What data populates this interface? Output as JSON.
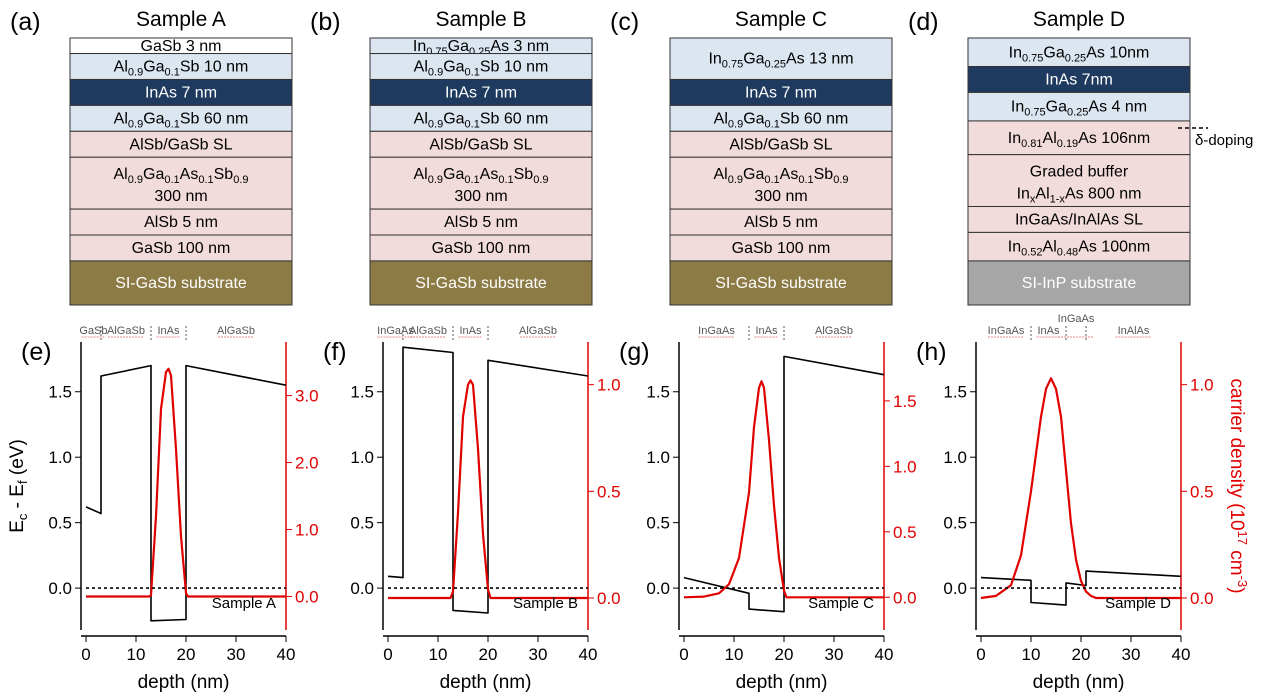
{
  "figure": {
    "panels": [
      {
        "label": "(a)",
        "title": "Sample A",
        "layers": [
          {
            "parts": [
              [
                "GaSb 3 nm"
              ]
            ],
            "fill": "#ffffff",
            "h": 0.6
          },
          {
            "parts": [
              [
                "Al"
              ],
              [
                "0.9",
                "sub"
              ],
              [
                "Ga"
              ],
              [
                "0.1",
                "sub"
              ],
              [
                "Sb 10 nm"
              ]
            ],
            "fill": "#dce6f1",
            "h": 1
          },
          {
            "parts": [
              [
                "InAs 7 nm"
              ]
            ],
            "fill": "#1f3a5f",
            "color": "#ffffff",
            "h": 1
          },
          {
            "parts": [
              [
                "Al"
              ],
              [
                "0.9",
                "sub"
              ],
              [
                "Ga"
              ],
              [
                "0.1",
                "sub"
              ],
              [
                "Sb 60 nm"
              ]
            ],
            "fill": "#dce6f1",
            "h": 1
          },
          {
            "parts": [
              [
                "AlSb/GaSb SL"
              ]
            ],
            "fill": "#f2dcdb",
            "h": 1
          },
          {
            "parts": [
              [
                "Al"
              ],
              [
                "0.9",
                "sub"
              ],
              [
                "Ga"
              ],
              [
                "0.1",
                "sub"
              ],
              [
                "As"
              ],
              [
                "0.1",
                "sub"
              ],
              [
                "Sb"
              ],
              [
                "0.9",
                "sub"
              ]
            ],
            "line2": "300 nm",
            "fill": "#f2dcdb",
            "h": 2
          },
          {
            "parts": [
              [
                "AlSb 5 nm"
              ]
            ],
            "fill": "#f2dcdb",
            "h": 1
          },
          {
            "parts": [
              [
                "GaSb 100 nm"
              ]
            ],
            "fill": "#f2dcdb",
            "h": 1
          },
          {
            "parts": [
              [
                "SI-GaSb substrate"
              ]
            ],
            "fill": "#8c7b45",
            "color": "#ffffff",
            "h": 1.7
          }
        ]
      },
      {
        "label": "(b)",
        "title": "Sample B",
        "layers": [
          {
            "parts": [
              [
                "In"
              ],
              [
                "0.75",
                "sub"
              ],
              [
                "Ga"
              ],
              [
                "0.25",
                "sub"
              ],
              [
                "As 3 nm"
              ]
            ],
            "fill": "#dce6f1",
            "h": 0.6
          },
          {
            "parts": [
              [
                "Al"
              ],
              [
                "0.9",
                "sub"
              ],
              [
                "Ga"
              ],
              [
                "0.1",
                "sub"
              ],
              [
                "Sb 10 nm"
              ]
            ],
            "fill": "#dce6f1",
            "h": 1
          },
          {
            "parts": [
              [
                "InAs 7 nm"
              ]
            ],
            "fill": "#1f3a5f",
            "color": "#ffffff",
            "h": 1
          },
          {
            "parts": [
              [
                "Al"
              ],
              [
                "0.9",
                "sub"
              ],
              [
                "Ga"
              ],
              [
                "0.1",
                "sub"
              ],
              [
                "Sb 60 nm"
              ]
            ],
            "fill": "#dce6f1",
            "h": 1
          },
          {
            "parts": [
              [
                "AlSb/GaSb SL"
              ]
            ],
            "fill": "#f2dcdb",
            "h": 1
          },
          {
            "parts": [
              [
                "Al"
              ],
              [
                "0.9",
                "sub"
              ],
              [
                "Ga"
              ],
              [
                "0.1",
                "sub"
              ],
              [
                "As"
              ],
              [
                "0.1",
                "sub"
              ],
              [
                "Sb"
              ],
              [
                "0.9",
                "sub"
              ]
            ],
            "line2": "300 nm",
            "fill": "#f2dcdb",
            "h": 2
          },
          {
            "parts": [
              [
                "AlSb 5 nm"
              ]
            ],
            "fill": "#f2dcdb",
            "h": 1
          },
          {
            "parts": [
              [
                "GaSb 100 nm"
              ]
            ],
            "fill": "#f2dcdb",
            "h": 1
          },
          {
            "parts": [
              [
                "SI-GaSb substrate"
              ]
            ],
            "fill": "#8c7b45",
            "color": "#ffffff",
            "h": 1.7
          }
        ]
      },
      {
        "label": "(c)",
        "title": "Sample C",
        "layers": [
          {
            "parts": [
              [
                "In"
              ],
              [
                "0.75",
                "sub"
              ],
              [
                "Ga"
              ],
              [
                "0.25",
                "sub"
              ],
              [
                "As  13 nm"
              ]
            ],
            "fill": "#dce6f1",
            "h": 1.6
          },
          {
            "parts": [
              [
                "InAs 7 nm"
              ]
            ],
            "fill": "#1f3a5f",
            "color": "#ffffff",
            "h": 1
          },
          {
            "parts": [
              [
                "Al"
              ],
              [
                "0.9",
                "sub"
              ],
              [
                "Ga"
              ],
              [
                "0.1",
                "sub"
              ],
              [
                "Sb 60 nm"
              ]
            ],
            "fill": "#dce6f1",
            "h": 1
          },
          {
            "parts": [
              [
                "AlSb/GaSb SL"
              ]
            ],
            "fill": "#f2dcdb",
            "h": 1
          },
          {
            "parts": [
              [
                "Al"
              ],
              [
                "0.9",
                "sub"
              ],
              [
                "Ga"
              ],
              [
                "0.1",
                "sub"
              ],
              [
                "As"
              ],
              [
                "0.1",
                "sub"
              ],
              [
                "Sb"
              ],
              [
                "0.9",
                "sub"
              ]
            ],
            "line2": "300 nm",
            "fill": "#f2dcdb",
            "h": 2
          },
          {
            "parts": [
              [
                "AlSb 5 nm"
              ]
            ],
            "fill": "#f2dcdb",
            "h": 1
          },
          {
            "parts": [
              [
                "GaSb 100 nm"
              ]
            ],
            "fill": "#f2dcdb",
            "h": 1
          },
          {
            "parts": [
              [
                "SI-GaSb substrate"
              ]
            ],
            "fill": "#8c7b45",
            "color": "#ffffff",
            "h": 1.7
          }
        ]
      },
      {
        "label": "(d)",
        "title": "Sample D",
        "layers": [
          {
            "parts": [
              [
                "In"
              ],
              [
                "0.75",
                "sub"
              ],
              [
                "Ga"
              ],
              [
                "0.25",
                "sub"
              ],
              [
                "As 10nm"
              ]
            ],
            "fill": "#dce6f1",
            "h": 1.1
          },
          {
            "parts": [
              [
                "InAs 7nm"
              ]
            ],
            "fill": "#1f3a5f",
            "color": "#ffffff",
            "h": 1
          },
          {
            "parts": [
              [
                "In"
              ],
              [
                "0.75",
                "sub"
              ],
              [
                "Ga"
              ],
              [
                "0.25",
                "sub"
              ],
              [
                "As 4 nm"
              ]
            ],
            "fill": "#dce6f1",
            "h": 1.1
          },
          {
            "parts": [
              [
                "In"
              ],
              [
                "0.81",
                "sub"
              ],
              [
                "Al"
              ],
              [
                "0.19",
                "sub"
              ],
              [
                "As 106nm"
              ]
            ],
            "fill": "#f2dcdb",
            "h": 1.3
          },
          {
            "parts": [
              [
                "Graded buffer"
              ]
            ],
            "line2parts": [
              [
                "In"
              ],
              [
                "x",
                "sub"
              ],
              [
                "Al"
              ],
              [
                "1-x",
                "sub"
              ],
              [
                "As 800 nm"
              ]
            ],
            "fill": "#f2dcdb",
            "h": 2
          },
          {
            "parts": [
              [
                "InGaAs/InAlAs SL"
              ]
            ],
            "fill": "#f2dcdb",
            "h": 1
          },
          {
            "parts": [
              [
                "In"
              ],
              [
                "0.52",
                "sub"
              ],
              [
                "Al"
              ],
              [
                "0.48",
                "sub"
              ],
              [
                "As 100nm"
              ]
            ],
            "fill": "#f2dcdb",
            "h": 1.1
          },
          {
            "parts": [
              [
                "SI-InP substrate"
              ]
            ],
            "fill": "#a6a6a6",
            "color": "#ffffff",
            "h": 1.7
          }
        ]
      }
    ],
    "delta_doping_label": "δ-doping"
  },
  "chart_data": [
    {
      "type": "line",
      "label": "(e)",
      "regions": [
        "GaSb",
        "AlGaSb",
        "InAs",
        "AlGaSb"
      ],
      "region_bounds": [
        0,
        3,
        13,
        20,
        40
      ],
      "sample_label": "Sample A",
      "xlabel": "depth (nm)",
      "ylabel": "E_c - E_f (eV)",
      "y2label": "",
      "xlim": [
        -1,
        40
      ],
      "xticks": [
        0,
        10,
        20,
        30,
        40
      ],
      "ylim": [
        -0.32,
        1.88
      ],
      "yticks": [
        "0.0",
        "0.5",
        "1.0",
        "1.5"
      ],
      "y2lim": [
        -0.5,
        3.8
      ],
      "y2ticks": [
        "0.0",
        "1.0",
        "2.0",
        "3.0"
      ],
      "y2color": "#e00000",
      "series": [
        {
          "color": "#000000",
          "x": [
            0,
            0,
            3,
            3,
            13,
            13,
            20,
            20,
            40
          ],
          "y": [
            0.62,
            0.62,
            0.57,
            1.62,
            1.7,
            -0.25,
            -0.24,
            1.7,
            1.55
          ]
        },
        {
          "color": "#e00000",
          "axis": "right",
          "x": [
            0,
            12.6,
            13,
            14,
            15,
            16,
            16.5,
            17,
            18,
            19,
            20,
            20.4,
            40
          ],
          "y": [
            0,
            0,
            0.02,
            1.2,
            2.8,
            3.35,
            3.4,
            3.3,
            2.2,
            0.9,
            0.05,
            0,
            0
          ]
        },
        {
          "color": "#000000",
          "dashed": true,
          "x": [
            0,
            40
          ],
          "y": [
            0,
            0
          ]
        }
      ]
    },
    {
      "type": "line",
      "label": "(f)",
      "regions": [
        "InGaAs",
        "AlGaSb",
        "InAs",
        "AlGaSb"
      ],
      "region_bounds": [
        0,
        3,
        13,
        20,
        40
      ],
      "sample_label": "Sample B",
      "xlabel": "depth (nm)",
      "ylabel": "",
      "y2label": "",
      "xlim": [
        -1,
        40
      ],
      "xticks": [
        0,
        10,
        20,
        30,
        40
      ],
      "ylim": [
        -0.32,
        1.88
      ],
      "yticks": [
        "0.0",
        "0.5",
        "1.0",
        "1.5"
      ],
      "y2lim": [
        -0.15,
        1.2
      ],
      "y2ticks": [
        "0.0",
        "0.5",
        "1.0"
      ],
      "y2color": "#e00000",
      "series": [
        {
          "color": "#000000",
          "x": [
            0,
            3,
            3,
            13,
            13,
            20,
            20,
            40
          ],
          "y": [
            0.09,
            0.08,
            1.84,
            1.8,
            -0.17,
            -0.19,
            1.74,
            1.62
          ]
        },
        {
          "color": "#e00000",
          "axis": "right",
          "x": [
            0,
            12.5,
            13,
            14,
            15,
            16,
            16.5,
            17,
            18,
            19,
            20,
            20.5,
            40
          ],
          "y": [
            0,
            0,
            0.03,
            0.4,
            0.85,
            1.0,
            1.02,
            1.0,
            0.7,
            0.3,
            0.04,
            0,
            0
          ]
        },
        {
          "color": "#000000",
          "dashed": true,
          "x": [
            0,
            40
          ],
          "y": [
            0,
            0
          ]
        }
      ]
    },
    {
      "type": "line",
      "label": "(g)",
      "regions": [
        "InGaAs",
        "InAs",
        "AlGaSb"
      ],
      "region_bounds": [
        0,
        13,
        20,
        40
      ],
      "sample_label": "Sample C",
      "xlabel": "depth (nm)",
      "ylabel": "",
      "y2label": "",
      "xlim": [
        -1,
        40
      ],
      "xticks": [
        0,
        10,
        20,
        30,
        40
      ],
      "ylim": [
        -0.32,
        1.88
      ],
      "yticks": [
        "0.0",
        "0.5",
        "1.0",
        "1.5"
      ],
      "y2lim": [
        -0.25,
        1.95
      ],
      "y2ticks": [
        "0.0",
        "0.5",
        "1.0",
        "1.5"
      ],
      "y2color": "#e00000",
      "series": [
        {
          "color": "#000000",
          "x": [
            0,
            13,
            13,
            20,
            20,
            40
          ],
          "y": [
            0.08,
            -0.04,
            -0.16,
            -0.18,
            1.77,
            1.63
          ]
        },
        {
          "color": "#e00000",
          "axis": "right",
          "x": [
            0,
            4,
            7,
            9,
            11,
            13,
            14,
            15,
            15.5,
            16,
            17,
            18,
            19,
            20,
            20.5,
            40
          ],
          "y": [
            0,
            0.005,
            0.03,
            0.1,
            0.3,
            0.8,
            1.3,
            1.6,
            1.65,
            1.6,
            1.2,
            0.7,
            0.3,
            0.05,
            0,
            0
          ]
        },
        {
          "color": "#000000",
          "dashed": true,
          "x": [
            0,
            40
          ],
          "y": [
            0,
            0
          ]
        }
      ]
    },
    {
      "type": "line",
      "label": "(h)",
      "regions": [
        "InGaAs",
        "InAs",
        "InGaAs",
        "InAlAs"
      ],
      "region_bounds": [
        0,
        10,
        17,
        21,
        40
      ],
      "sample_label": "Sample D",
      "xlabel": "depth (nm)",
      "ylabel": "",
      "y2label": "carrier density (10",
      "y2label_sup": "17",
      "y2label_tail": " cm",
      "y2label_sup2": "-3",
      "y2label_end": ")",
      "xlim": [
        -1,
        40
      ],
      "xticks": [
        0,
        10,
        20,
        30,
        40
      ],
      "ylim": [
        -0.32,
        1.88
      ],
      "yticks": [
        "0.0",
        "0.5",
        "1.0",
        "1.5"
      ],
      "y2lim": [
        -0.15,
        1.2
      ],
      "y2ticks": [
        "0.0",
        "0.5",
        "1.0"
      ],
      "y2color": "#e00000",
      "series": [
        {
          "color": "#000000",
          "x": [
            0,
            10,
            10,
            17,
            17,
            21,
            21,
            40
          ],
          "y": [
            0.08,
            0.06,
            -0.11,
            -0.13,
            0.04,
            0.02,
            0.13,
            0.09
          ]
        },
        {
          "color": "#e00000",
          "axis": "right",
          "x": [
            0,
            3,
            6,
            8,
            10,
            12,
            13,
            14,
            15,
            16,
            17,
            18,
            19,
            20,
            21,
            22,
            23,
            40
          ],
          "y": [
            0,
            0.01,
            0.06,
            0.2,
            0.5,
            0.85,
            0.98,
            1.03,
            0.98,
            0.85,
            0.6,
            0.35,
            0.18,
            0.08,
            0.03,
            0.01,
            0,
            0
          ]
        },
        {
          "color": "#000000",
          "dashed": true,
          "x": [
            0,
            40
          ],
          "y": [
            0,
            0
          ]
        }
      ]
    }
  ]
}
